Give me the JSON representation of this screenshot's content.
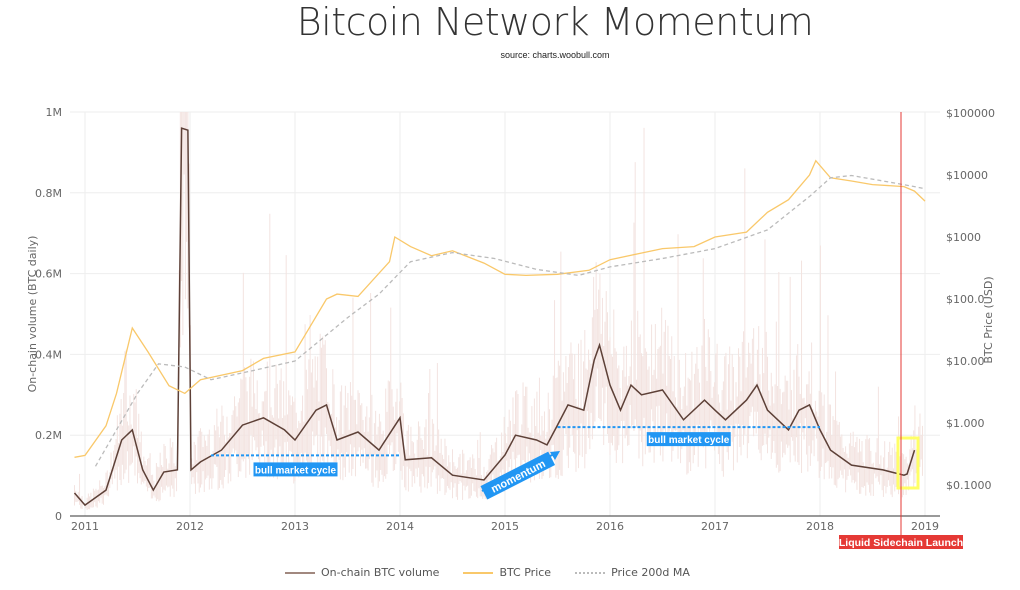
{
  "chart_data": {
    "type": "line",
    "title": "Bitcoin Network Momentum",
    "subtitle": "source: charts.woobull.com",
    "ylabel": "On-chain volume (BTC daily)",
    "y2label": "BTC Price (USD)",
    "ylim": [
      0,
      1000000
    ],
    "y2lim_log": [
      0.03,
      100000
    ],
    "xlim": [
      2010.87,
      2019.05
    ],
    "x_ticks": [
      "2011",
      "2012",
      "2013",
      "2014",
      "2015",
      "2016",
      "2017",
      "2018",
      "2019"
    ],
    "y_ticks": [
      "0",
      "0.2M",
      "0.4M",
      "0.6M",
      "0.8M",
      "1M"
    ],
    "y2_ticks": [
      "$0.1000",
      "$1.000",
      "$10.00",
      "$100.0",
      "$1000",
      "$10000",
      "$100000"
    ],
    "legend_position": "bottom",
    "series": [
      {
        "name": "On-chain BTC volume",
        "color": "#5d4037",
        "points": [
          [
            2010.9,
            57000
          ],
          [
            2011.0,
            27000
          ],
          [
            2011.2,
            64000
          ],
          [
            2011.35,
            188000
          ],
          [
            2011.45,
            213000
          ],
          [
            2011.55,
            114000
          ],
          [
            2011.65,
            64000
          ],
          [
            2011.75,
            109000
          ],
          [
            2011.88,
            114000
          ],
          [
            2011.92,
            960000
          ],
          [
            2011.98,
            955000
          ],
          [
            2012.01,
            114000
          ],
          [
            2012.1,
            134000
          ],
          [
            2012.3,
            163000
          ],
          [
            2012.5,
            225000
          ],
          [
            2012.7,
            243000
          ],
          [
            2012.9,
            213000
          ],
          [
            2013.0,
            188000
          ],
          [
            2013.2,
            262000
          ],
          [
            2013.3,
            275000
          ],
          [
            2013.4,
            188000
          ],
          [
            2013.6,
            208000
          ],
          [
            2013.8,
            163000
          ],
          [
            2014.0,
            243000
          ],
          [
            2014.05,
            139000
          ],
          [
            2014.3,
            144000
          ],
          [
            2014.5,
            101000
          ],
          [
            2014.8,
            89000
          ],
          [
            2015.0,
            151000
          ],
          [
            2015.1,
            200000
          ],
          [
            2015.3,
            188000
          ],
          [
            2015.4,
            176000
          ],
          [
            2015.5,
            225000
          ],
          [
            2015.6,
            275000
          ],
          [
            2015.75,
            262000
          ],
          [
            2015.85,
            386000
          ],
          [
            2015.9,
            423000
          ],
          [
            2016.0,
            324000
          ],
          [
            2016.1,
            262000
          ],
          [
            2016.2,
            324000
          ],
          [
            2016.3,
            300000
          ],
          [
            2016.5,
            312000
          ],
          [
            2016.7,
            238000
          ],
          [
            2016.9,
            287000
          ],
          [
            2017.0,
            262000
          ],
          [
            2017.1,
            238000
          ],
          [
            2017.3,
            287000
          ],
          [
            2017.4,
            324000
          ],
          [
            2017.5,
            262000
          ],
          [
            2017.7,
            213000
          ],
          [
            2017.8,
            262000
          ],
          [
            2017.9,
            275000
          ],
          [
            2018.0,
            213000
          ],
          [
            2018.1,
            163000
          ],
          [
            2018.3,
            126000
          ],
          [
            2018.6,
            114000
          ],
          [
            2018.8,
            101000
          ],
          [
            2018.83,
            104000
          ],
          [
            2018.9,
            163000
          ]
        ]
      },
      {
        "name": "BTC Price",
        "color": "#f9c86a",
        "axis": "right",
        "points": [
          [
            2010.9,
            0.28
          ],
          [
            2011.0,
            0.3
          ],
          [
            2011.2,
            0.9
          ],
          [
            2011.3,
            3
          ],
          [
            2011.45,
            34
          ],
          [
            2011.6,
            14
          ],
          [
            2011.8,
            4
          ],
          [
            2011.95,
            3
          ],
          [
            2012.1,
            5
          ],
          [
            2012.5,
            7
          ],
          [
            2012.7,
            11
          ],
          [
            2013.0,
            14
          ],
          [
            2013.3,
            100
          ],
          [
            2013.4,
            120
          ],
          [
            2013.6,
            110
          ],
          [
            2013.9,
            400
          ],
          [
            2013.95,
            1000
          ],
          [
            2014.1,
            700
          ],
          [
            2014.3,
            500
          ],
          [
            2014.5,
            600
          ],
          [
            2014.8,
            380
          ],
          [
            2015.0,
            250
          ],
          [
            2015.2,
            240
          ],
          [
            2015.5,
            250
          ],
          [
            2015.8,
            290
          ],
          [
            2016.0,
            430
          ],
          [
            2016.5,
            650
          ],
          [
            2016.8,
            700
          ],
          [
            2017.0,
            1000
          ],
          [
            2017.3,
            1200
          ],
          [
            2017.5,
            2500
          ],
          [
            2017.7,
            4000
          ],
          [
            2017.9,
            10000
          ],
          [
            2017.96,
            17000
          ],
          [
            2018.1,
            9000
          ],
          [
            2018.3,
            8000
          ],
          [
            2018.5,
            7000
          ],
          [
            2018.8,
            6500
          ],
          [
            2018.9,
            5500
          ],
          [
            2019.0,
            3800
          ]
        ]
      },
      {
        "name": "Price 200d MA",
        "color": "#bbbbbb",
        "dashed": true,
        "axis": "right",
        "points": [
          [
            2011.1,
            0.2
          ],
          [
            2011.5,
            3
          ],
          [
            2011.7,
            9
          ],
          [
            2011.95,
            8
          ],
          [
            2012.2,
            5
          ],
          [
            2012.6,
            7
          ],
          [
            2013.0,
            10
          ],
          [
            2013.5,
            50
          ],
          [
            2013.8,
            120
          ],
          [
            2014.1,
            400
          ],
          [
            2014.5,
            560
          ],
          [
            2014.9,
            450
          ],
          [
            2015.3,
            300
          ],
          [
            2015.7,
            240
          ],
          [
            2016.0,
            330
          ],
          [
            2016.5,
            450
          ],
          [
            2017.0,
            650
          ],
          [
            2017.5,
            1300
          ],
          [
            2017.9,
            4500
          ],
          [
            2018.1,
            9000
          ],
          [
            2018.3,
            9800
          ],
          [
            2018.6,
            8000
          ],
          [
            2018.9,
            6500
          ],
          [
            2019.0,
            6000
          ]
        ]
      }
    ],
    "annotations": {
      "bull1": {
        "label": "bull market cycle",
        "x": [
          2012.2,
          2014.0
        ],
        "y": 150000
      },
      "bull2": {
        "label": "bull market cycle",
        "x": [
          2015.5,
          2018.0
        ],
        "y": 220000
      },
      "momentum": {
        "label": "momentum"
      },
      "event": {
        "label": "Liquid Sidechain Launch",
        "x": 2018.75,
        "color": "#e53935"
      },
      "highlight_color": "#ffff66",
      "accent": "#2196f3"
    }
  }
}
